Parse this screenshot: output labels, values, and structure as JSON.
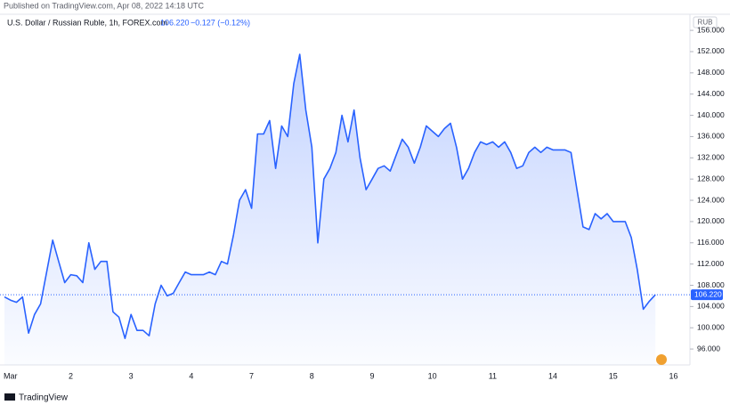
{
  "chart_data": {
    "type": "area",
    "published": "Published on TradingView.com, Apr 08, 2022 14:18 UTC",
    "title": "U.S. Dollar / Russian Ruble, 1h, FOREX.com",
    "last_price": {
      "value": 106.22,
      "label": "106.220"
    },
    "change": "−0.127 (−0.12%)",
    "unit": "RUB",
    "brand": "TradingView",
    "color": "#2962ff",
    "categories": [
      null,
      "Mar",
      null,
      null,
      null,
      null,
      null,
      null,
      null,
      null,
      null,
      "2",
      null,
      null,
      null,
      null,
      null,
      null,
      null,
      null,
      null,
      "3",
      null,
      null,
      null,
      null,
      null,
      null,
      null,
      null,
      null,
      "4",
      null,
      null,
      null,
      null,
      null,
      null,
      null,
      null,
      null,
      "7",
      null,
      null,
      null,
      null,
      null,
      null,
      null,
      null,
      null,
      "8",
      null,
      null,
      null,
      null,
      null,
      null,
      null,
      null,
      null,
      "9",
      null,
      null,
      null,
      null,
      null,
      null,
      null,
      null,
      null,
      "10",
      null,
      null,
      null,
      null,
      null,
      null,
      null,
      null,
      null,
      "11",
      null,
      null,
      null,
      null,
      null,
      null,
      null,
      null,
      null,
      "14",
      null,
      null,
      null,
      null,
      null,
      null,
      null,
      null,
      null,
      "15",
      null,
      null,
      null,
      null,
      null,
      null,
      null,
      null,
      null,
      "16"
    ],
    "values": [
      105.8,
      105.2,
      104.8,
      105.8,
      99.0,
      102.5,
      104.5,
      110.5,
      116.5,
      112.5,
      108.5,
      110,
      109.8,
      108.5,
      116,
      111,
      112.5,
      112.5,
      103,
      102,
      98,
      102.5,
      99.5,
      99.5,
      98.5,
      104.5,
      108,
      106,
      106.5,
      108.5,
      110.5,
      110,
      110,
      110,
      110.5,
      110,
      112.5,
      112,
      117.5,
      124,
      126,
      122.5,
      136.5,
      136.5,
      139,
      130,
      138,
      136,
      146,
      151.5,
      141,
      134,
      116,
      128,
      130,
      133,
      140,
      135,
      141,
      132,
      126,
      128,
      130,
      130.5,
      129.5,
      132.5,
      135.5,
      134,
      131,
      134,
      138,
      137,
      136,
      137.5,
      138.5,
      134,
      128,
      130,
      133,
      135,
      134.5,
      135,
      134,
      135,
      133,
      130,
      130.5,
      133,
      134,
      133,
      134,
      133.5,
      133.5,
      133.5,
      133,
      126,
      119,
      118.5,
      121.5,
      120.5,
      121.5,
      120,
      120,
      120,
      117,
      111,
      103.5,
      105,
      106.22,
      null,
      null,
      null
    ],
    "ylim": [
      93,
      158.7
    ],
    "yticks": [
      {
        "value": 96,
        "label": "96.000"
      },
      {
        "value": 100,
        "label": "100.000"
      },
      {
        "value": 104,
        "label": "104.000"
      },
      {
        "value": 108,
        "label": "108.000"
      },
      {
        "value": 112,
        "label": "112.000"
      },
      {
        "value": 116,
        "label": "116.000"
      },
      {
        "value": 120,
        "label": "120.000"
      },
      {
        "value": 124,
        "label": "124.000"
      },
      {
        "value": 128,
        "label": "128.000"
      },
      {
        "value": 132,
        "label": "132.000"
      },
      {
        "value": 136,
        "label": "136.000"
      },
      {
        "value": 140,
        "label": "140.000"
      },
      {
        "value": 144,
        "label": "144.000"
      },
      {
        "value": 148,
        "label": "148.000"
      },
      {
        "value": 152,
        "label": "152.000"
      },
      {
        "value": 156,
        "label": "156.000"
      }
    ]
  }
}
